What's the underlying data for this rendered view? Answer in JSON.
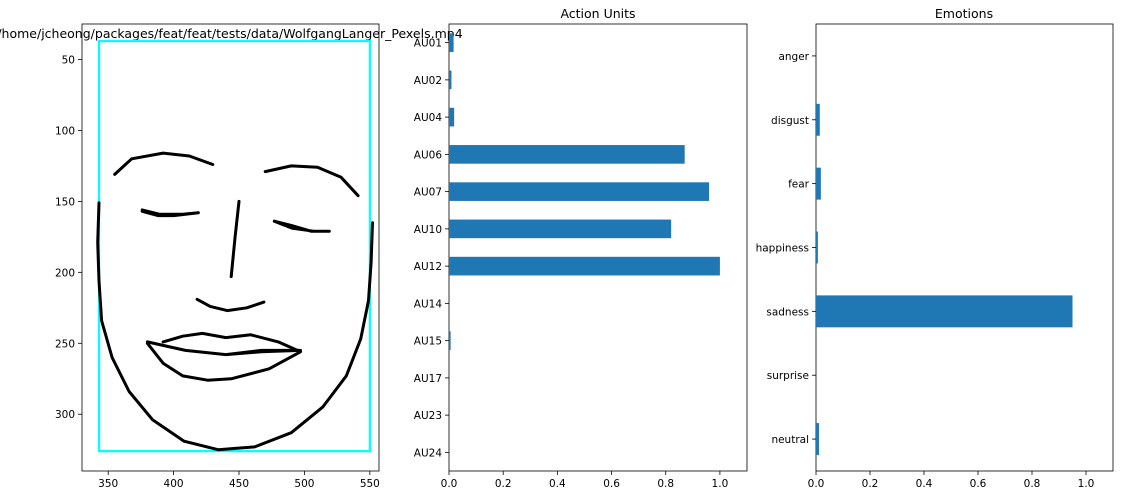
{
  "chart_data": [
    {
      "type": "line",
      "title": "/home/jcheong/packages/feat/feat/tests/data/WolfgangLanger_Pexels.mp4",
      "xlim": [
        330,
        557
      ],
      "ylim": [
        340,
        25
      ],
      "y_inverted": true,
      "xticks": [
        350,
        400,
        450,
        500,
        550
      ],
      "yticks": [
        50,
        100,
        150,
        200,
        250,
        300
      ],
      "face_box": {
        "x0": 343,
        "y0": 37,
        "x1": 550,
        "y1": 326,
        "color": "#00ffff"
      },
      "face_lines": [
        {
          "name": "jaw",
          "points": [
            [
              343,
              151
            ],
            [
              342,
              179
            ],
            [
              343,
              206
            ],
            [
              345,
              234
            ],
            [
              353,
              260
            ],
            [
              366,
              284
            ],
            [
              384,
              304
            ],
            [
              408,
              319
            ],
            [
              434,
              325
            ],
            [
              462,
              323
            ],
            [
              490,
              313
            ],
            [
              514,
              295
            ],
            [
              532,
              273
            ],
            [
              543,
              247
            ],
            [
              549,
              220
            ],
            [
              551,
              193
            ],
            [
              552,
              165
            ]
          ]
        },
        {
          "name": "left-brow",
          "points": [
            [
              355,
              131
            ],
            [
              368,
              120
            ],
            [
              392,
              116
            ],
            [
              412,
              118
            ],
            [
              430,
              124
            ]
          ]
        },
        {
          "name": "right-brow",
          "points": [
            [
              470,
              129
            ],
            [
              490,
              125
            ],
            [
              510,
              126
            ],
            [
              528,
              133
            ],
            [
              541,
              146
            ]
          ]
        },
        {
          "name": "nose",
          "points": [
            [
              450,
              150
            ],
            [
              447,
              175
            ],
            [
              444,
              203
            ]
          ]
        },
        {
          "name": "nostrils",
          "points": [
            [
              418,
              219
            ],
            [
              428,
              224
            ],
            [
              441,
              227
            ],
            [
              456,
              225
            ],
            [
              469,
              221
            ]
          ]
        },
        {
          "name": "left-eye",
          "points": [
            [
              376,
              157
            ],
            [
              388,
              160
            ],
            [
              400,
              160
            ],
            [
              419,
              158
            ],
            [
              407,
              159
            ],
            [
              389,
              159
            ],
            [
              376,
              156
            ]
          ]
        },
        {
          "name": "right-eye",
          "points": [
            [
              477,
              164
            ],
            [
              490,
              167
            ],
            [
              505,
              171
            ],
            [
              519,
              171
            ],
            [
              507,
              171
            ],
            [
              491,
              169
            ],
            [
              477,
              164
            ]
          ]
        },
        {
          "name": "outer-lips",
          "points": [
            [
              392,
              249
            ],
            [
              407,
              245
            ],
            [
              422,
              243
            ],
            [
              440,
              246
            ],
            [
              459,
              244
            ],
            [
              480,
              249
            ],
            [
              497,
              256
            ],
            [
              473,
              268
            ],
            [
              444,
              275
            ],
            [
              426,
              276
            ],
            [
              407,
              273
            ],
            [
              392,
              264
            ],
            [
              380,
              250
            ]
          ]
        },
        {
          "name": "inner-lips",
          "points": [
            [
              380,
              249
            ],
            [
              409,
              255
            ],
            [
              440,
              258
            ],
            [
              467,
              256
            ],
            [
              497,
              255
            ],
            [
              467,
              255
            ],
            [
              440,
              258
            ],
            [
              409,
              255
            ]
          ]
        }
      ]
    },
    {
      "type": "bar",
      "orientation": "horizontal",
      "title": "Action Units",
      "categories": [
        "AU01",
        "AU02",
        "AU04",
        "AU06",
        "AU07",
        "AU10",
        "AU12",
        "AU14",
        "AU15",
        "AU17",
        "AU23",
        "AU24"
      ],
      "values": [
        0.017,
        0.009,
        0.019,
        0.87,
        0.96,
        0.82,
        1.0,
        0.0,
        0.006,
        0.0,
        0.0,
        0.0
      ],
      "xlim": [
        0,
        1.1
      ],
      "xticks": [
        "0.0",
        "0.2",
        "0.4",
        "0.6",
        "0.8",
        "1.0"
      ],
      "color": "#1f77b4"
    },
    {
      "type": "bar",
      "orientation": "horizontal",
      "title": "Emotions",
      "categories": [
        "anger",
        "disgust",
        "fear",
        "happiness",
        "sadness",
        "surprise",
        "neutral"
      ],
      "values": [
        0.0,
        0.014,
        0.018,
        0.007,
        0.95,
        0.0,
        0.011
      ],
      "xlim": [
        0,
        1.1
      ],
      "xticks": [
        "0.0",
        "0.2",
        "0.4",
        "0.6",
        "0.8",
        "1.0"
      ],
      "color": "#1f77b4"
    }
  ]
}
